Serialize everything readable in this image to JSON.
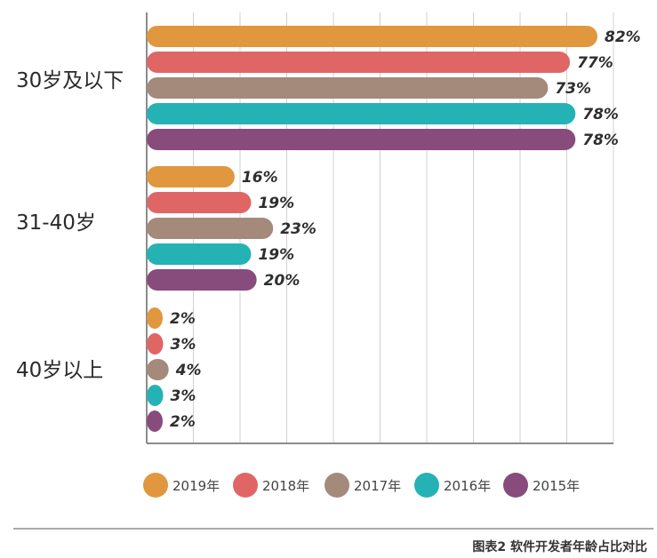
{
  "chart_data": {
    "type": "bar",
    "orientation": "horizontal",
    "categories": [
      "30岁及以下",
      "31-40岁",
      "40岁以上"
    ],
    "series": [
      {
        "name": "2019年",
        "color": "#E0973E",
        "values": [
          82,
          16,
          2
        ],
        "labels": [
          "82%",
          "16%",
          "2%"
        ]
      },
      {
        "name": "2018年",
        "color": "#E06666",
        "values": [
          77,
          19,
          3
        ],
        "labels": [
          "77%",
          "19%",
          "3%"
        ]
      },
      {
        "name": "2017年",
        "color": "#A48A7B",
        "values": [
          73,
          23,
          4
        ],
        "labels": [
          "73%",
          "23%",
          "4%"
        ]
      },
      {
        "name": "2016年",
        "color": "#25B2B4",
        "values": [
          78,
          19,
          3
        ],
        "labels": [
          "78%",
          "19%",
          "3%"
        ]
      },
      {
        "name": "2015年",
        "color": "#874C7C",
        "values": [
          78,
          20,
          2
        ],
        "labels": [
          "78%",
          "20%",
          "2%"
        ]
      }
    ],
    "xlim": [
      0,
      100
    ],
    "grid": true,
    "legend_position": "bottom",
    "caption": "图表2 软件开发者年龄占比对比"
  }
}
